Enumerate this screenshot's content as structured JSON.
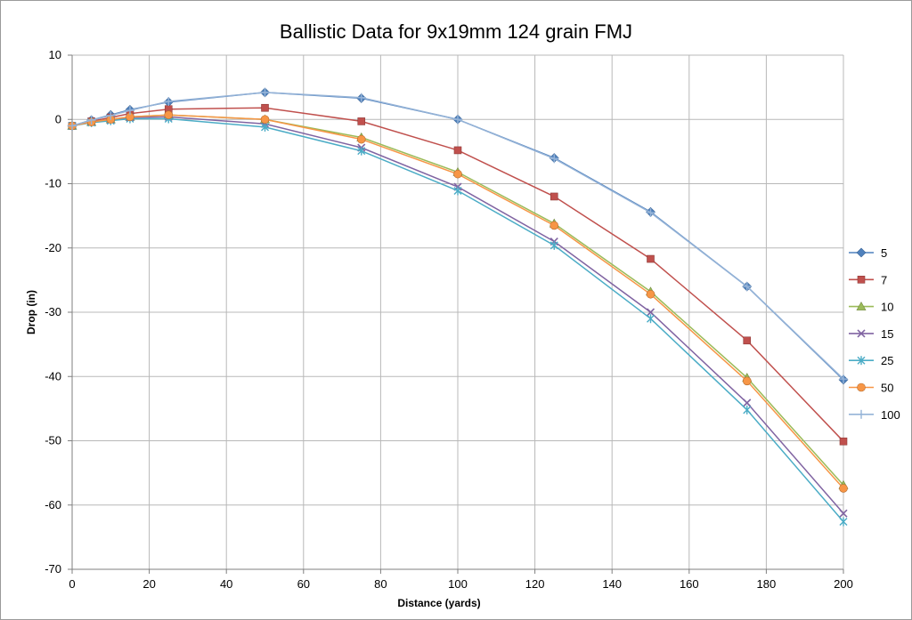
{
  "chart_data": {
    "type": "line",
    "title": "Ballistic Data for 9x19mm 124 grain FMJ",
    "xlabel": "Distance (yards)",
    "ylabel": "Drop (in)",
    "xlim": [
      0,
      200
    ],
    "ylim": [
      -70,
      10
    ],
    "xticks": [
      0,
      20,
      40,
      60,
      80,
      100,
      120,
      140,
      160,
      180,
      200
    ],
    "yticks": [
      10,
      0,
      -10,
      -20,
      -30,
      -40,
      -50,
      -60,
      -70
    ],
    "grid": true,
    "legend_position": "right",
    "x": [
      0,
      5,
      10,
      15,
      25,
      50,
      75,
      100,
      125,
      150,
      175,
      200
    ],
    "series": [
      {
        "name": "5",
        "color": "#4f81bd",
        "marker": "diamond",
        "values": [
          -1,
          -0.1,
          0.7,
          1.5,
          2.7,
          4.2,
          3.3,
          0.0,
          -6.0,
          -14.4,
          -26.0,
          -40.5
        ]
      },
      {
        "name": "7",
        "color": "#c0504d",
        "marker": "square",
        "values": [
          -1,
          -0.3,
          0.3,
          0.9,
          1.6,
          1.8,
          -0.3,
          -4.8,
          -12.0,
          -21.7,
          -34.4,
          -50.1
        ]
      },
      {
        "name": "10",
        "color": "#9bbb59",
        "marker": "triangle",
        "values": [
          -1,
          -0.4,
          0.0,
          0.4,
          0.7,
          0.0,
          -2.8,
          -8.2,
          -16.2,
          -26.8,
          -40.2,
          -56.9
        ]
      },
      {
        "name": "15",
        "color": "#8064a2",
        "marker": "x",
        "values": [
          -1,
          -0.4,
          -0.1,
          0.3,
          0.4,
          -0.7,
          -4.4,
          -10.5,
          -19.0,
          -30.0,
          -44.1,
          -61.3
        ]
      },
      {
        "name": "25",
        "color": "#4bacc6",
        "marker": "star",
        "values": [
          -1,
          -0.5,
          -0.2,
          0.1,
          0.1,
          -1.2,
          -4.9,
          -11.1,
          -19.6,
          -31.0,
          -45.2,
          -62.6
        ]
      },
      {
        "name": "50",
        "color": "#f79646",
        "marker": "circle",
        "values": [
          -1,
          -0.4,
          -0.0,
          0.4,
          0.7,
          0.0,
          -3.1,
          -8.5,
          -16.5,
          -27.2,
          -40.7,
          -57.4
        ]
      },
      {
        "name": "100",
        "color": "#95b3d7",
        "marker": "plus",
        "values": [
          -1,
          -0.1,
          0.6,
          1.4,
          2.8,
          4.2,
          3.4,
          0.0,
          -6.1,
          -14.5,
          -26.0,
          -40.4
        ]
      }
    ]
  }
}
